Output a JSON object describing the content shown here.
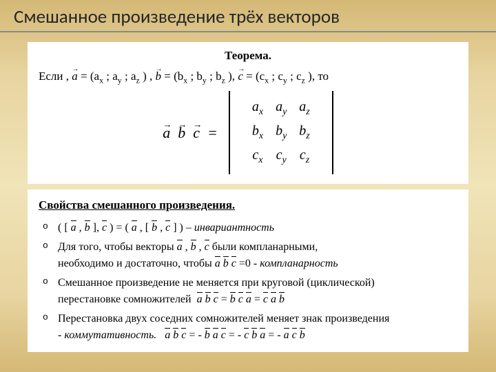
{
  "title": "Смешанное произведение трёх векторов",
  "theorem": {
    "label": "Теорема.",
    "given_prefix": "Если ,",
    "given_suffix": ", то",
    "a": "a",
    "b": "b",
    "c": "c",
    "ax": "aₓ",
    "ay": "aᵧ",
    "az": "a_z",
    "bx": "bₓ",
    "by": "bᵧ",
    "bz": "b_z",
    "cx": "cₓ",
    "cy": "cᵧ",
    "cz": "c_z",
    "equals": "="
  },
  "properties": {
    "title": "Свойства смешанного произведения.",
    "p1_suffix": "инвариантность",
    "p2a": "Для того, чтобы векторы",
    "p2b": "были компланарными,",
    "p2c": "необходимо и достаточно, чтобы",
    "p2d": "=0 -",
    "p2e": "компланарность",
    "p3a": "Смешанное произведение не меняется при круговой (циклической)",
    "p3b": "перестановке сомножителей",
    "p4a": "Перестановка двух соседних сомножителей меняет знак произведения",
    "p4b": "- ",
    "p4c": "коммутативность."
  }
}
